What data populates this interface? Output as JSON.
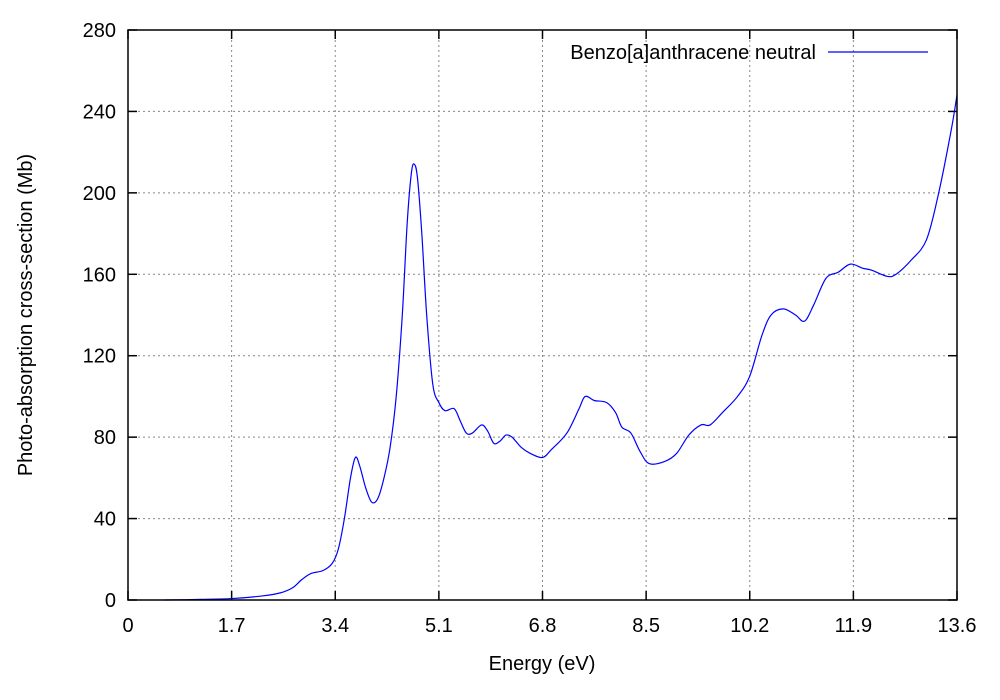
{
  "chart_data": {
    "type": "line",
    "title": "",
    "xlabel": "Energy (eV)",
    "ylabel": "Photo-absorption cross-section (Mb)",
    "xlim": [
      0,
      13.6
    ],
    "ylim": [
      0,
      280
    ],
    "x_ticks": [
      0,
      1.7,
      3.4,
      5.1,
      6.8,
      8.5,
      10.2,
      11.9,
      13.6
    ],
    "x_tick_labels": [
      "0",
      "1.7",
      "3.4",
      "5.1",
      "6.8",
      "8.5",
      "10.2",
      "11.9",
      "13.6"
    ],
    "y_ticks": [
      0,
      40,
      80,
      120,
      160,
      200,
      240,
      280
    ],
    "y_tick_labels": [
      "0",
      "40",
      "80",
      "120",
      "160",
      "200",
      "240",
      "280"
    ],
    "grid": true,
    "legend_position": "top-right",
    "series": [
      {
        "name": "Benzo[a]anthracene neutral",
        "color": "#0000ff",
        "points": [
          [
            0.6,
            0.0
          ],
          [
            1.2,
            0.3
          ],
          [
            1.7,
            0.7
          ],
          [
            2.2,
            2.0
          ],
          [
            2.5,
            3.5
          ],
          [
            2.7,
            6.0
          ],
          [
            2.85,
            10.0
          ],
          [
            3.0,
            13.0
          ],
          [
            3.2,
            14.5
          ],
          [
            3.35,
            18.0
          ],
          [
            3.45,
            25.0
          ],
          [
            3.55,
            40.0
          ],
          [
            3.65,
            60.0
          ],
          [
            3.73,
            70.0
          ],
          [
            3.8,
            66.0
          ],
          [
            3.9,
            55.0
          ],
          [
            4.0,
            48.0
          ],
          [
            4.1,
            50.0
          ],
          [
            4.2,
            60.0
          ],
          [
            4.3,
            75.0
          ],
          [
            4.4,
            100.0
          ],
          [
            4.5,
            140.0
          ],
          [
            4.58,
            185.0
          ],
          [
            4.65,
            210.0
          ],
          [
            4.7,
            214.0
          ],
          [
            4.75,
            207.0
          ],
          [
            4.82,
            180.0
          ],
          [
            4.9,
            140.0
          ],
          [
            5.0,
            106.0
          ],
          [
            5.1,
            97.0
          ],
          [
            5.2,
            93.0
          ],
          [
            5.35,
            94.0
          ],
          [
            5.45,
            88.0
          ],
          [
            5.55,
            82.0
          ],
          [
            5.65,
            82.0
          ],
          [
            5.8,
            86.0
          ],
          [
            5.9,
            83.0
          ],
          [
            6.0,
            77.0
          ],
          [
            6.1,
            78.0
          ],
          [
            6.2,
            81.0
          ],
          [
            6.3,
            80.0
          ],
          [
            6.45,
            75.0
          ],
          [
            6.6,
            72.0
          ],
          [
            6.8,
            70.0
          ],
          [
            6.95,
            74.0
          ],
          [
            7.2,
            82.0
          ],
          [
            7.4,
            94.0
          ],
          [
            7.5,
            100.0
          ],
          [
            7.65,
            98.0
          ],
          [
            7.85,
            97.0
          ],
          [
            8.0,
            92.0
          ],
          [
            8.1,
            85.0
          ],
          [
            8.25,
            82.0
          ],
          [
            8.4,
            73.0
          ],
          [
            8.55,
            67.0
          ],
          [
            8.8,
            68.0
          ],
          [
            9.0,
            72.0
          ],
          [
            9.2,
            81.0
          ],
          [
            9.4,
            86.0
          ],
          [
            9.55,
            86.0
          ],
          [
            9.75,
            92.0
          ],
          [
            10.0,
            100.0
          ],
          [
            10.2,
            110.0
          ],
          [
            10.4,
            130.0
          ],
          [
            10.55,
            140.0
          ],
          [
            10.75,
            143.0
          ],
          [
            10.95,
            140.0
          ],
          [
            11.1,
            137.0
          ],
          [
            11.25,
            145.0
          ],
          [
            11.45,
            158.0
          ],
          [
            11.65,
            161.0
          ],
          [
            11.85,
            165.0
          ],
          [
            12.05,
            163.0
          ],
          [
            12.2,
            162.0
          ],
          [
            12.45,
            159.0
          ],
          [
            12.6,
            160.0
          ],
          [
            12.85,
            167.0
          ],
          [
            13.1,
            177.0
          ],
          [
            13.3,
            200.0
          ],
          [
            13.5,
            230.0
          ],
          [
            13.6,
            248.0
          ]
        ]
      }
    ]
  }
}
